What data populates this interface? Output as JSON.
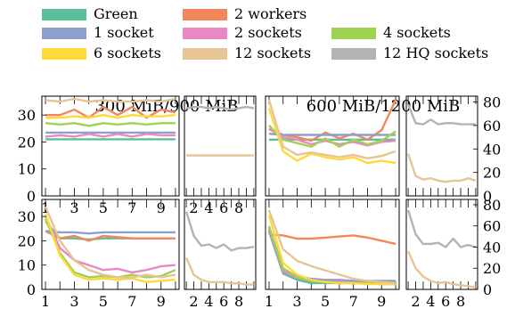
{
  "legend": {
    "entries": [
      {
        "label": "Green",
        "color": "#5cbf9a"
      },
      {
        "label": "2 workers",
        "color": "#f2875c"
      },
      {
        "label": "1 socket",
        "color": "#8e9fce"
      },
      {
        "label": "2 sockets",
        "color": "#e889c5"
      },
      {
        "label": "4 sockets",
        "color": "#9fd250"
      },
      {
        "label": "6 sockets",
        "color": "#ffd93a"
      },
      {
        "label": "12 sockets",
        "color": "#e6c494"
      },
      {
        "label": "12 HQ sockets",
        "color": "#b3b3b3"
      }
    ]
  },
  "chart_data": [
    {
      "type": "line",
      "title": "300 MiB/900 MiB",
      "x": [
        1,
        2,
        3,
        4,
        5,
        6,
        7,
        8,
        9,
        10
      ],
      "xlim": [
        0.75,
        10.25
      ],
      "ylim": [
        0,
        37
      ],
      "yticks": [
        0,
        10,
        20,
        30
      ],
      "xticks": [
        1,
        3,
        5,
        7,
        9
      ],
      "series": [
        {
          "name": "Green",
          "values": [
            21,
            21,
            21,
            21,
            21,
            21,
            21,
            21,
            21,
            21
          ]
        },
        {
          "name": "2 workers",
          "values": [
            30,
            30,
            32,
            29,
            33,
            30,
            33,
            29,
            32,
            31
          ]
        },
        {
          "name": "1 socket",
          "values": [
            23.5,
            23.5,
            23.5,
            23.5,
            23.5,
            23.5,
            23.5,
            23.5,
            23.5,
            23.5
          ]
        },
        {
          "name": "2 sockets",
          "values": [
            22,
            22.5,
            22,
            23,
            22,
            23,
            22,
            23,
            22.5,
            22.5
          ]
        },
        {
          "name": "4 sockets",
          "values": [
            27,
            26.5,
            27,
            26,
            27,
            26.5,
            27,
            26.5,
            27,
            27
          ]
        },
        {
          "name": "6 sockets",
          "values": [
            29,
            29,
            29.5,
            29,
            30,
            29,
            30,
            29.5,
            29.5,
            30
          ]
        },
        {
          "name": "12 sockets",
          "values": [
            35.5,
            35,
            36,
            35,
            35.5,
            35,
            35,
            35.5,
            35,
            36
          ]
        }
      ]
    },
    {
      "type": "line",
      "x": [
        1,
        2,
        3,
        4,
        5,
        6,
        7,
        8,
        9,
        10
      ],
      "xlim": [
        0.75,
        10.25
      ],
      "ylim": [
        0,
        37
      ],
      "xticks": [
        2,
        4,
        6,
        8
      ],
      "series": [
        {
          "name": "12 sockets",
          "values": [
            15,
            15,
            15,
            15,
            15,
            15,
            15,
            15,
            15,
            15
          ]
        },
        {
          "name": "12 HQ sockets",
          "values": [
            32.5,
            33,
            33,
            32.5,
            33,
            32.5,
            32,
            32.5,
            33,
            32.5
          ]
        }
      ]
    },
    {
      "type": "line",
      "title": "600 MiB/1200 MiB",
      "x": [
        1,
        2,
        3,
        4,
        5,
        6,
        7,
        8,
        9,
        10
      ],
      "xlim": [
        0.75,
        10.25
      ],
      "ylim": [
        0,
        85
      ],
      "series": [
        {
          "name": "Green",
          "values": [
            48,
            48,
            48,
            48,
            48,
            48,
            48,
            48,
            48,
            48
          ]
        },
        {
          "name": "2 workers",
          "values": [
            57,
            52,
            50,
            47,
            54,
            49,
            53,
            48,
            56,
            82
          ]
        },
        {
          "name": "1 socket",
          "values": [
            53,
            52,
            52,
            52,
            52,
            52,
            52,
            52,
            52,
            52
          ]
        },
        {
          "name": "2 sockets",
          "values": [
            57,
            50,
            48,
            44,
            47,
            44,
            46,
            43,
            46,
            47
          ]
        },
        {
          "name": "4 sockets",
          "values": [
            60,
            48,
            45,
            42,
            49,
            42,
            48,
            44,
            47,
            55
          ]
        },
        {
          "name": "6 sockets",
          "values": [
            75,
            38,
            30,
            36,
            33,
            31,
            33,
            28,
            30,
            28
          ]
        },
        {
          "name": "12 sockets",
          "values": [
            82,
            42,
            35,
            37,
            35,
            33,
            35,
            32,
            34,
            38
          ]
        }
      ]
    },
    {
      "type": "line",
      "x": [
        1,
        2,
        3,
        4,
        5,
        6,
        7,
        8,
        9,
        10
      ],
      "xlim": [
        0.75,
        10.25
      ],
      "ylim": [
        0,
        85
      ],
      "yticks": [
        0,
        20,
        40,
        60,
        80
      ],
      "series": [
        {
          "name": "12 sockets",
          "values": [
            36,
            17,
            14,
            15,
            13,
            12,
            13,
            13,
            15,
            13
          ]
        },
        {
          "name": "12 HQ sockets",
          "values": [
            78,
            62,
            61,
            65,
            61,
            62,
            62,
            61,
            61,
            61
          ]
        }
      ]
    },
    {
      "type": "line",
      "x": [
        1,
        2,
        3,
        4,
        5,
        6,
        7,
        8,
        9,
        10
      ],
      "xlim": [
        0.75,
        10.25
      ],
      "ylim": [
        0,
        37
      ],
      "yticks": [
        0,
        10,
        20,
        30
      ],
      "xticks": [
        1,
        3,
        5,
        7,
        9
      ],
      "series": [
        {
          "name": "Green",
          "values": [
            28,
            21,
            21,
            20.5,
            21,
            21,
            21,
            21,
            21,
            21
          ]
        },
        {
          "name": "2 workers",
          "values": [
            24,
            21,
            22,
            20,
            22,
            21.5,
            21,
            21,
            21,
            21
          ]
        },
        {
          "name": "1 socket",
          "values": [
            24,
            23.5,
            23.5,
            23,
            23.5,
            23.5,
            23.5,
            23.5,
            23.5,
            23.5
          ]
        },
        {
          "name": "2 sockets",
          "values": [
            30,
            17,
            12,
            10,
            8,
            8.5,
            7,
            8,
            9.5,
            10
          ]
        },
        {
          "name": "4 sockets",
          "values": [
            29,
            15,
            7,
            5,
            5.5,
            5,
            6,
            5,
            5.5,
            8
          ]
        },
        {
          "name": "6 sockets",
          "values": [
            31,
            14,
            6,
            4,
            4.5,
            4,
            4.5,
            3,
            3.5,
            4
          ]
        },
        {
          "name": "12 sockets",
          "values": [
            34,
            20,
            12,
            8,
            6,
            5,
            5,
            6,
            5,
            6
          ]
        }
      ]
    },
    {
      "type": "line",
      "x": [
        1,
        2,
        3,
        4,
        5,
        6,
        7,
        8,
        9,
        10
      ],
      "xlim": [
        0.75,
        10.25
      ],
      "ylim": [
        0,
        37
      ],
      "xticks": [
        2,
        4,
        6,
        8
      ],
      "series": [
        {
          "name": "12 sockets",
          "values": [
            13,
            6,
            4,
            3,
            3,
            3,
            2.5,
            2.5,
            2,
            2
          ]
        },
        {
          "name": "12 HQ sockets",
          "values": [
            32,
            22,
            18,
            18.5,
            17,
            18.5,
            16,
            17,
            17,
            17.5
          ]
        }
      ]
    },
    {
      "type": "line",
      "x": [
        1,
        2,
        3,
        4,
        5,
        6,
        7,
        8,
        9,
        10
      ],
      "xlim": [
        0.75,
        10.25
      ],
      "ylim": [
        0,
        85
      ],
      "xticks": [
        1,
        3,
        5,
        7,
        9
      ],
      "series": [
        {
          "name": "Green",
          "values": [
            55,
            15,
            9,
            6,
            6,
            6,
            6,
            6,
            6,
            6
          ]
        },
        {
          "name": "2 workers",
          "values": [
            52,
            51,
            48,
            48,
            49,
            50,
            51,
            49,
            46,
            43
          ]
        },
        {
          "name": "1 socket",
          "values": [
            56,
            18,
            12,
            10,
            9,
            9,
            8,
            8,
            8,
            8
          ]
        },
        {
          "name": "2 sockets",
          "values": [
            58,
            17,
            11,
            8,
            7,
            7,
            6,
            6,
            5,
            5
          ]
        },
        {
          "name": "4 sockets",
          "values": [
            60,
            20,
            12,
            8,
            7,
            6,
            6,
            6,
            5,
            5
          ]
        },
        {
          "name": "6 sockets",
          "values": [
            70,
            25,
            14,
            9,
            7,
            6,
            6,
            5,
            5,
            5
          ]
        },
        {
          "name": "12 sockets",
          "values": [
            75,
            38,
            27,
            22,
            18,
            14,
            10,
            8,
            7,
            6
          ]
        }
      ]
    },
    {
      "type": "line",
      "x": [
        1,
        2,
        3,
        4,
        5,
        6,
        7,
        8,
        9,
        10
      ],
      "xlim": [
        0.75,
        10.25
      ],
      "ylim": [
        0,
        85
      ],
      "yticks": [
        0,
        20,
        40,
        60,
        80
      ],
      "xticks": [
        2,
        4,
        6,
        8
      ],
      "series": [
        {
          "name": "12 sockets",
          "values": [
            36,
            20,
            12,
            8,
            6,
            7,
            5,
            4,
            3,
            2
          ]
        },
        {
          "name": "12 HQ sockets",
          "values": [
            75,
            52,
            43,
            43,
            44,
            40,
            48,
            40,
            42,
            40
          ]
        }
      ]
    }
  ]
}
